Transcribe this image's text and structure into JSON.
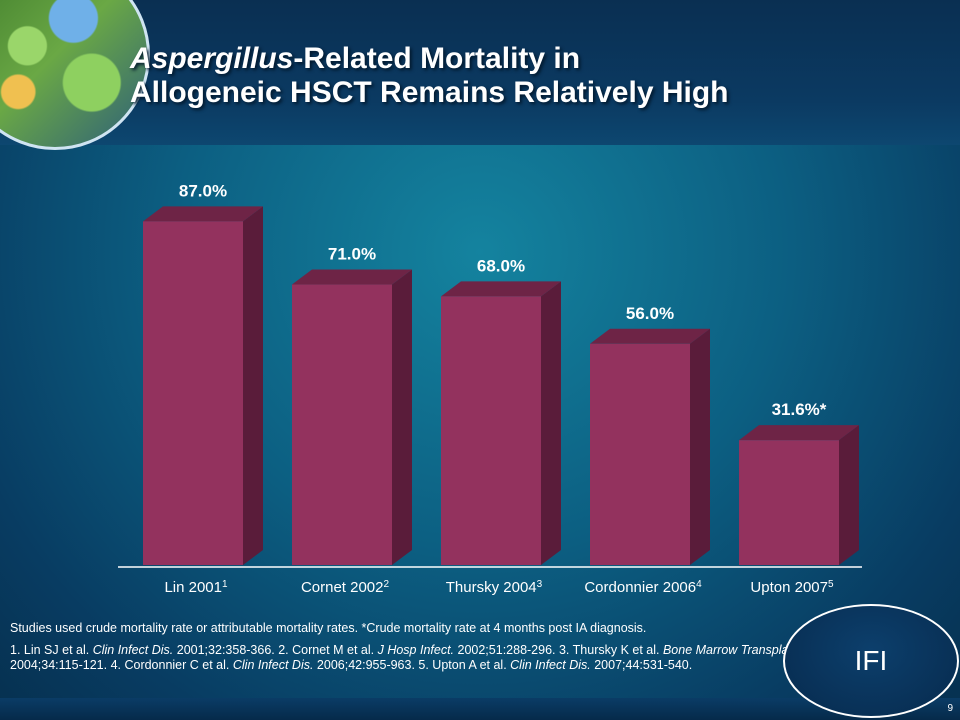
{
  "title": {
    "line1_italic": "Aspergillus",
    "line1_rest": "-Related Mortality in",
    "line2": "Allogeneic HSCT Remains Relatively High"
  },
  "chart_data": {
    "type": "bar",
    "title": "Aspergillus-Related Mortality in Allogeneic HSCT Remains Relatively High",
    "categories": [
      "Lin 2001",
      "Cornet 2002",
      "Thursky 2004",
      "Cordonnier 2006",
      "Upton 2007"
    ],
    "category_superscripts": [
      "1",
      "2",
      "3",
      "4",
      "5"
    ],
    "values": [
      87.0,
      71.0,
      68.0,
      56.0,
      31.6
    ],
    "value_labels": [
      "87.0%",
      "71.0%",
      "68.0%",
      "56.0%",
      "31.6%*"
    ],
    "ylim": [
      0,
      100
    ],
    "xlabel": "",
    "ylabel": "",
    "grid": false,
    "bar_color": "#93325e",
    "bar_side_color": "#5a1c3a",
    "bar_top_color": "#6e2446"
  },
  "notes": {
    "line1": "Studies used crude mortality rate or attributable mortality rates. *Crude mortality rate at 4 months post IA diagnosis.",
    "references": [
      {
        "pre": "1. Lin SJ et al. ",
        "journal": "Clin Infect Dis.",
        "post": " 2001;32:358-366. "
      },
      {
        "pre": "2. Cornet M et al. ",
        "journal": "J Hosp Infect.",
        "post": " 2002;51:288-296. "
      },
      {
        "pre": "3. Thursky K et al. ",
        "journal": "Bone Marrow Transplant.",
        "post": " 2004;34:115-121. "
      },
      {
        "pre": "4. Cordonnier C et al. ",
        "journal": "Clin Infect Dis.",
        "post": " 2006;42:955-963. "
      },
      {
        "pre": "5. Upton A et al. ",
        "journal": "Clin Infect Dis.",
        "post": " 2007;44:531-540."
      }
    ]
  },
  "badge": "IFI",
  "slide_number": "9"
}
